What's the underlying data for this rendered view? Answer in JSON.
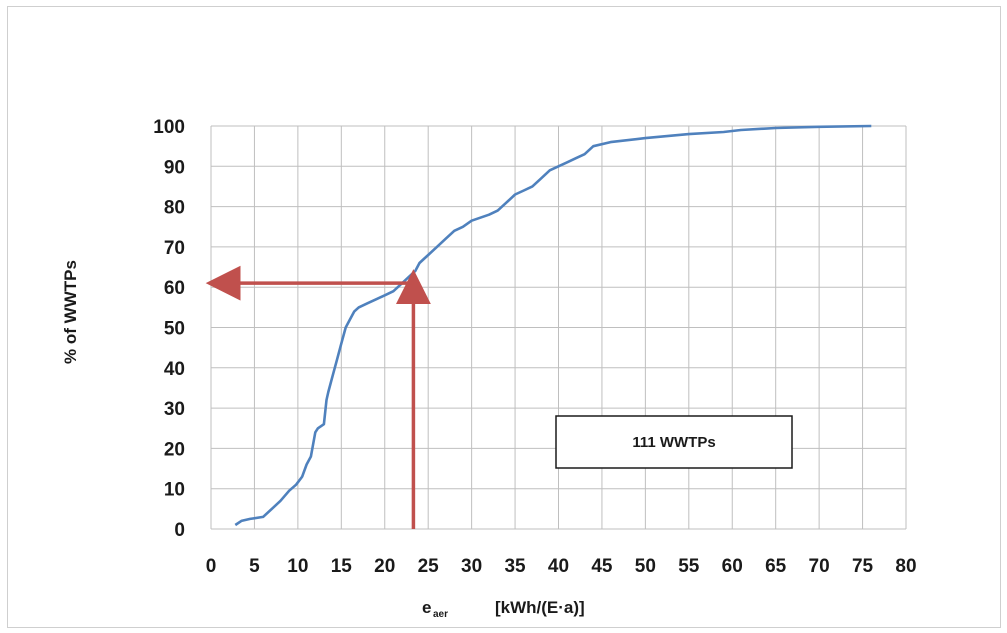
{
  "chart_data": {
    "type": "line",
    "xlabel_main": "e",
    "xlabel_sub": "aer",
    "xlabel_unit": "[kWh/(E·a)]",
    "ylabel": "% of WWTPs",
    "xlim": [
      0,
      80
    ],
    "ylim": [
      0,
      100
    ],
    "x_ticks": [
      "0",
      "5",
      "10",
      "15",
      "20",
      "25",
      "30",
      "35",
      "40",
      "45",
      "50",
      "55",
      "60",
      "65",
      "70",
      "75",
      "80"
    ],
    "y_ticks": [
      "0",
      "10",
      "20",
      "30",
      "40",
      "50",
      "60",
      "70",
      "80",
      "90",
      "100"
    ],
    "grid": true,
    "legend": "none",
    "annotation": "111 WWTPs",
    "series": [
      {
        "color": "#4f81bd",
        "x": [
          2.8,
          3.5,
          4.5,
          6.0,
          7.0,
          8.0,
          9.0,
          9.8,
          10.5,
          11.0,
          11.5,
          12.0,
          12.3,
          13.0,
          13.3,
          13.5,
          14.0,
          14.5,
          15.0,
          15.5,
          16.0,
          16.5,
          17.0,
          18.0,
          19.0,
          20.0,
          21.0,
          22.0,
          22.5,
          23.0,
          23.5,
          24.0,
          24.5,
          25.0,
          26.0,
          27.0,
          28.0,
          29.0,
          30.0,
          32.0,
          33.0,
          34.0,
          35.0,
          36.0,
          37.0,
          38.0,
          39.0,
          40.0,
          41.0,
          42.0,
          43.0,
          44.0,
          46.0,
          50.0,
          55.0,
          59.0,
          61.0,
          65.0,
          70.0,
          76.0
        ],
        "y": [
          1,
          2,
          2.5,
          3,
          5,
          7,
          9.5,
          11,
          13,
          16,
          18,
          24,
          25,
          26,
          32,
          34,
          38,
          42,
          46,
          50,
          52,
          54,
          55,
          56,
          57,
          58,
          59,
          61,
          62,
          63,
          64,
          66,
          67,
          68,
          70,
          72,
          74,
          75,
          76.5,
          78,
          79,
          81,
          83,
          84,
          85,
          87,
          89,
          90,
          91,
          92,
          93,
          95,
          96,
          97,
          98,
          98.5,
          99,
          99.5,
          99.8,
          100
        ]
      }
    ],
    "arrows": {
      "color": "#c0504d",
      "vertical": {
        "x": 23.3,
        "y_from": 0,
        "y_to": 61
      },
      "horizontal": {
        "y": 61,
        "x_from": 23.3,
        "x_to": 1
      }
    }
  }
}
